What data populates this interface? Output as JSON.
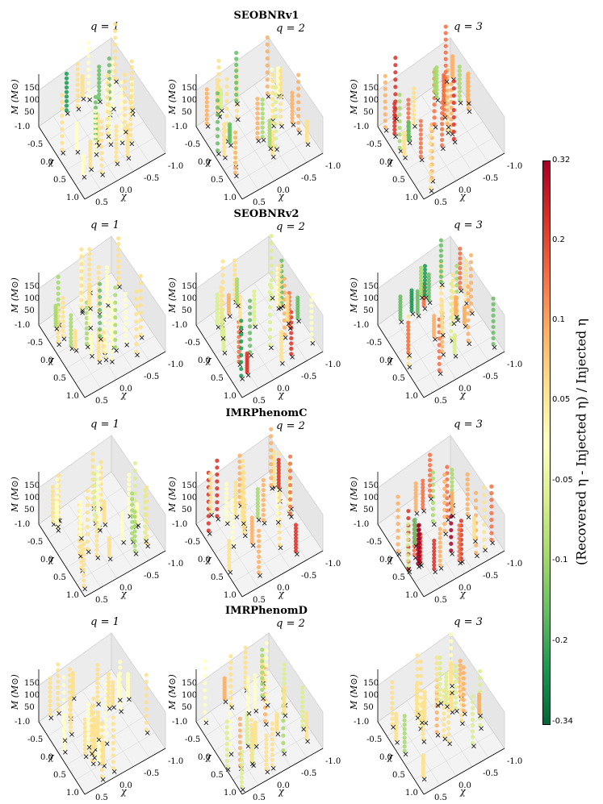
{
  "chart_data": {
    "type": "scatter",
    "subtype": "3d-scatter-grid",
    "rows": [
      {
        "title": "SEOBNRv1",
        "panels": [
          {
            "label": "q = 1",
            "q": 1,
            "deviations": [
              0.01,
              0.02,
              -0.01,
              0.0,
              0.03,
              -0.02,
              -0.12,
              -0.2,
              0.01,
              0.02
            ]
          },
          {
            "label": "q = 2",
            "q": 2,
            "deviations": [
              0.08,
              0.07,
              0.02,
              0.01,
              -0.08,
              -0.15,
              0.0,
              0.03,
              -0.06,
              0.02
            ]
          },
          {
            "label": "q = 3",
            "q": 3,
            "deviations": [
              0.18,
              0.15,
              0.12,
              0.09,
              0.06,
              -0.1,
              -0.12,
              0.04,
              0.11,
              0.2
            ]
          }
        ]
      },
      {
        "title": "SEOBNRv2",
        "panels": [
          {
            "label": "q = 1",
            "q": 1,
            "deviations": [
              0.01,
              0.0,
              -0.02,
              0.02,
              -0.07,
              -0.09,
              0.01,
              0.03,
              -0.01,
              0.02
            ]
          },
          {
            "label": "q = 2",
            "q": 2,
            "deviations": [
              0.15,
              -0.1,
              -0.18,
              0.12,
              0.02,
              -0.06,
              0.0,
              0.03,
              -0.08,
              0.01
            ]
          },
          {
            "label": "q = 3",
            "q": 3,
            "deviations": [
              0.08,
              0.12,
              0.06,
              -0.12,
              -0.2,
              -0.15,
              0.14,
              0.05,
              -0.09,
              0.04
            ]
          }
        ]
      },
      {
        "title": "IMRPhenomC",
        "panels": [
          {
            "label": "q = 1",
            "q": 1,
            "deviations": [
              0.01,
              -0.06,
              0.02,
              -0.08,
              0.0,
              0.03,
              -0.02,
              0.01,
              0.02,
              -0.05
            ]
          },
          {
            "label": "q = 2",
            "q": 2,
            "deviations": [
              0.07,
              0.09,
              0.14,
              0.05,
              0.02,
              -0.07,
              0.0,
              0.03,
              0.01,
              0.18
            ]
          },
          {
            "label": "q = 3",
            "q": 3,
            "deviations": [
              0.12,
              0.1,
              0.08,
              0.22,
              0.28,
              0.15,
              -0.08,
              0.06,
              0.09,
              -0.1
            ]
          }
        ]
      },
      {
        "title": "IMRPhenomD",
        "panels": [
          {
            "label": "q = 1",
            "q": 1,
            "deviations": [
              0.01,
              0.02,
              0.0,
              -0.01,
              0.03,
              0.02,
              0.01,
              0.0,
              0.02,
              0.01
            ]
          },
          {
            "label": "q = 2",
            "q": 2,
            "deviations": [
              0.07,
              0.02,
              0.0,
              -0.06,
              -0.08,
              0.01,
              0.03,
              -0.07,
              0.02,
              0.0
            ]
          },
          {
            "label": "q = 3",
            "q": 3,
            "deviations": [
              0.08,
              0.07,
              0.04,
              -0.08,
              -0.07,
              0.02,
              -0.06,
              0.03,
              0.01,
              0.05
            ]
          }
        ]
      }
    ],
    "axes": {
      "z_label": "M (M⊙)",
      "z_ticks": [
        "150",
        "100",
        "50"
      ],
      "chi_label": "χ",
      "chi_ticks_left": [
        "-1.0",
        "-0.5",
        "0.0",
        "0.5",
        "1.0"
      ],
      "chi_ticks_bottom": [
        "0.5",
        "0.0",
        "-0.5",
        "-1.0"
      ]
    },
    "colorbar": {
      "title": "(Recovered η - Injected η) / Injected η",
      "ticks": [
        "0.32",
        "0.2",
        "0.1",
        "0.05",
        "-0.05",
        "-0.1",
        "-0.2",
        "-0.34"
      ],
      "colors": [
        "#a50026",
        "#d73027",
        "#f46d43",
        "#fdae61",
        "#fee08b",
        "#ffffbf",
        "#d9ef8b",
        "#a6d96a",
        "#66bd63",
        "#1a9850",
        "#006837"
      ]
    }
  }
}
